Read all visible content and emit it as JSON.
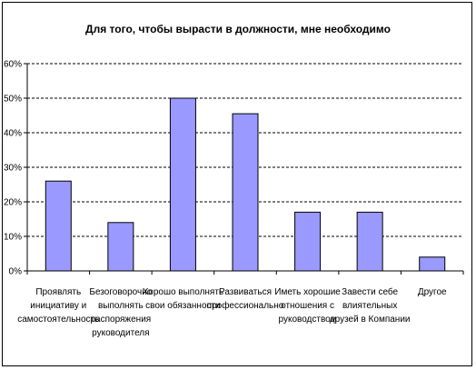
{
  "chart_data": {
    "type": "bar",
    "title": "Для того, чтобы вырасти в должности, мне необходимо",
    "xlabel": "",
    "ylabel": "",
    "ylim": [
      0,
      60
    ],
    "y_ticks": [
      "0%",
      "10%",
      "20%",
      "30%",
      "40%",
      "50%",
      "60%"
    ],
    "grid": "horizontal-dashed",
    "legend": "none",
    "categories": [
      [
        "Проявлять",
        "инициативу и",
        "самостоятельность"
      ],
      [
        "Безоговорочно",
        "выполнять",
        "распоряжения",
        "руководителя"
      ],
      [
        "Хорошо выполнять",
        "свои обязанности"
      ],
      [
        "Развиваться",
        "профессионально"
      ],
      [
        "Иметь хорошие",
        "отношения с",
        "руководством"
      ],
      [
        "Завести себе",
        "влиятельных",
        "друзей в Компании"
      ],
      [
        "Другое"
      ]
    ],
    "values": [
      26,
      14,
      50,
      45.5,
      17,
      17,
      4
    ],
    "colors": {
      "bar_fill": "#9999ff",
      "bar_stroke": "#000000",
      "grid": "#000000"
    }
  }
}
